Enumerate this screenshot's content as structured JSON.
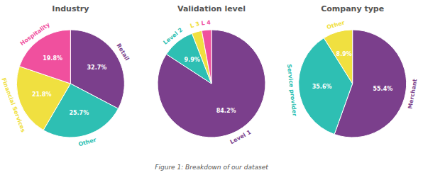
{
  "chart_data": [
    {
      "type": "pie",
      "title": "Industry",
      "categories": [
        "Retail",
        "Other",
        "Financial Services",
        "Hospitality"
      ],
      "values": [
        32.7,
        25.7,
        21.8,
        19.8
      ],
      "value_labels": [
        "32.7%",
        "25.7%",
        "21.8%",
        "19.8%"
      ],
      "colors": [
        "#7b3f8c",
        "#2ebfb3",
        "#f0e040",
        "#f0509e"
      ]
    },
    {
      "type": "pie",
      "title": "Validation level",
      "categories": [
        "Level 1",
        "Level 2",
        "L 3",
        "L 4"
      ],
      "values": [
        84.2,
        9.9,
        3.0,
        2.9
      ],
      "value_labels": [
        "84.2%",
        "9.9%",
        null,
        null
      ],
      "colors": [
        "#7b3f8c",
        "#2ebfb3",
        "#f0e040",
        "#f0509e"
      ]
    },
    {
      "type": "pie",
      "title": "Company type",
      "categories": [
        "Merchant",
        "Service provider",
        "Other"
      ],
      "values": [
        55.4,
        35.6,
        8.9
      ],
      "value_labels": [
        "55.4%",
        "35.6%",
        "8.9%"
      ],
      "colors": [
        "#7b3f8c",
        "#2ebfb3",
        "#f0e040"
      ]
    }
  ],
  "caption": "Figure 1: Breakdown of our dataset"
}
